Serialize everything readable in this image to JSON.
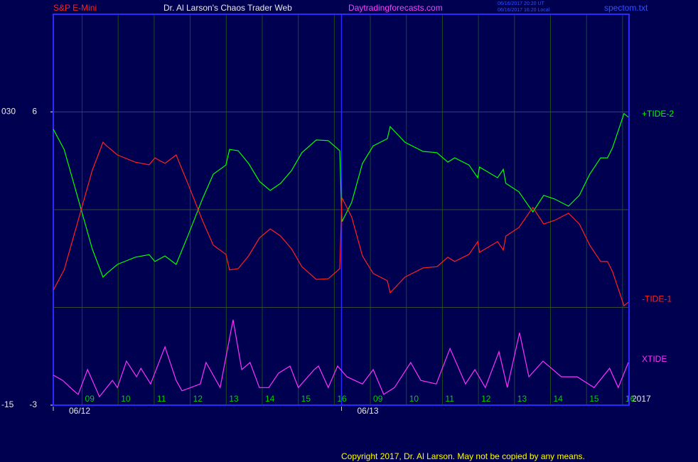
{
  "chart_data": {
    "type": "line",
    "header": {
      "left": "S&P E-Mini",
      "center": "Dr. Al Larson's Chaos Trader Web",
      "site": "Daytradingforecasts.com",
      "stamp_1": "06/16/2017 20:20 UT",
      "stamp_2": "06/16/2017 16:20 Local",
      "file": "spectom.txt"
    },
    "footer": "Copyright 2017, Dr. Al Larson. May not be copied by any means.",
    "year": "2017",
    "xlim": [
      8.2,
      24.18
    ],
    "xticks": [
      {
        "value": 9,
        "label": "09"
      },
      10,
      11,
      12,
      13,
      14,
      15,
      16,
      {
        "value": 17,
        "label": "09"
      },
      {
        "value": 18,
        "label": "10"
      },
      {
        "value": 19,
        "label": "11"
      },
      {
        "value": 20,
        "label": "12"
      },
      {
        "value": 21,
        "label": "13"
      },
      {
        "value": 22,
        "label": "14"
      },
      {
        "value": 23,
        "label": "15"
      },
      {
        "value": 24,
        "label": "16"
      }
    ],
    "dates": [
      {
        "value": 8.2,
        "label": "06/12"
      },
      {
        "value": 16.2,
        "label": "06/13"
      }
    ],
    "ylim": [
      -3,
      9
    ],
    "yticks": [
      6,
      -3
    ],
    "ygrid": [
      6,
      3,
      0,
      -3
    ],
    "price_ticks": [
      {
        "value": 6,
        "label": "030"
      },
      {
        "value": -3,
        "label": "-15"
      }
    ],
    "grid": true,
    "series": [
      {
        "name": "+TIDE-2",
        "color": "#00ff00",
        "x": [
          8.2,
          8.5,
          8.89,
          9.28,
          9.58,
          9.68,
          9.98,
          10.47,
          10.86,
          11.02,
          11.3,
          11.61,
          11.95,
          12.34,
          12.64,
          12.99,
          13.09,
          13.33,
          13.62,
          13.92,
          14.22,
          14.51,
          14.81,
          15.1,
          15.5,
          15.83,
          16.15,
          16.21,
          16.48,
          16.78,
          17.08,
          17.47,
          17.55,
          17.96,
          18.46,
          18.85,
          19.15,
          19.34,
          19.74,
          19.98,
          20.03,
          20.53,
          20.69,
          20.76,
          21.12,
          21.51,
          21.81,
          22.11,
          22.5,
          22.8,
          23.09,
          23.39,
          23.58,
          23.72,
          24.04,
          24.16
        ],
        "values": [
          5.47,
          4.85,
          3.33,
          1.8,
          0.93,
          1.04,
          1.32,
          1.54,
          1.62,
          1.41,
          1.58,
          1.32,
          2.24,
          3.33,
          4.09,
          4.37,
          4.85,
          4.81,
          4.42,
          3.87,
          3.59,
          3.81,
          4.2,
          4.75,
          5.14,
          5.12,
          4.81,
          2.63,
          3.22,
          4.42,
          4.96,
          5.18,
          5.55,
          5.07,
          4.79,
          4.75,
          4.46,
          4.59,
          4.37,
          3.98,
          4.31,
          3.98,
          4.24,
          3.81,
          3.55,
          2.93,
          3.44,
          3.33,
          3.11,
          3.44,
          4.09,
          4.59,
          4.59,
          4.9,
          5.95,
          5.84
        ]
      },
      {
        "name": "-TIDE-1",
        "color": "#ff2020",
        "x": [
          8.2,
          8.5,
          8.89,
          9.28,
          9.58,
          9.68,
          9.98,
          10.47,
          10.86,
          11.02,
          11.3,
          11.61,
          11.95,
          12.34,
          12.64,
          12.99,
          13.09,
          13.33,
          13.62,
          13.92,
          14.22,
          14.51,
          14.81,
          15.1,
          15.5,
          15.83,
          16.15,
          16.21,
          16.48,
          16.78,
          17.08,
          17.47,
          17.55,
          17.96,
          18.46,
          18.85,
          19.15,
          19.34,
          19.74,
          19.98,
          20.03,
          20.53,
          20.69,
          20.76,
          21.12,
          21.51,
          21.81,
          22.11,
          22.5,
          22.8,
          23.09,
          23.39,
          23.58,
          23.72,
          24.04,
          24.16
        ],
        "values": [
          0.53,
          1.15,
          2.67,
          4.2,
          5.07,
          4.96,
          4.68,
          4.46,
          4.38,
          4.59,
          4.42,
          4.68,
          3.76,
          2.67,
          1.91,
          1.63,
          1.15,
          1.19,
          1.58,
          2.13,
          2.41,
          2.19,
          1.8,
          1.25,
          0.86,
          0.88,
          1.19,
          3.37,
          2.78,
          1.58,
          1.04,
          0.82,
          0.45,
          0.93,
          1.21,
          1.25,
          1.54,
          1.41,
          1.63,
          2.02,
          1.69,
          2.02,
          1.76,
          2.19,
          2.45,
          3.07,
          2.56,
          2.67,
          2.89,
          2.56,
          1.91,
          1.41,
          1.41,
          1.1,
          0.05,
          0.16
        ]
      },
      {
        "name": "XTIDE",
        "color": "#ff30ff",
        "x": [
          8.2,
          8.46,
          8.73,
          8.89,
          9.15,
          9.48,
          9.84,
          9.98,
          10.23,
          10.51,
          10.63,
          10.9,
          11.3,
          11.61,
          11.77,
          12.01,
          12.28,
          12.44,
          12.83,
          13.19,
          13.43,
          13.66,
          13.92,
          14.18,
          14.45,
          14.77,
          15.0,
          15.44,
          15.56,
          15.83,
          16.09,
          16.35,
          16.78,
          17.08,
          17.37,
          17.67,
          18.12,
          18.4,
          18.83,
          19.21,
          19.64,
          19.9,
          20.19,
          20.57,
          20.8,
          21.14,
          21.4,
          21.79,
          22.3,
          22.74,
          23.21,
          23.64,
          23.88,
          24.16
        ],
        "values": [
          -2.08,
          -2.24,
          -2.52,
          -2.67,
          -1.91,
          -2.74,
          -2.24,
          -2.46,
          -1.65,
          -2.13,
          -1.87,
          -2.35,
          -1.21,
          -2.24,
          -2.56,
          -2.46,
          -2.35,
          -1.69,
          -2.46,
          -0.38,
          -1.91,
          -1.69,
          -2.46,
          -2.46,
          -2.02,
          -1.8,
          -2.46,
          -1.91,
          -1.8,
          -2.46,
          -1.8,
          -2.13,
          -2.35,
          -1.91,
          -2.67,
          -2.46,
          -1.69,
          -2.24,
          -2.35,
          -1.26,
          -2.35,
          -1.91,
          -2.46,
          -1.36,
          -2.46,
          -0.78,
          -2.13,
          -1.65,
          -2.13,
          -2.13,
          -2.46,
          -1.87,
          -2.46,
          -1.69
        ]
      }
    ]
  }
}
